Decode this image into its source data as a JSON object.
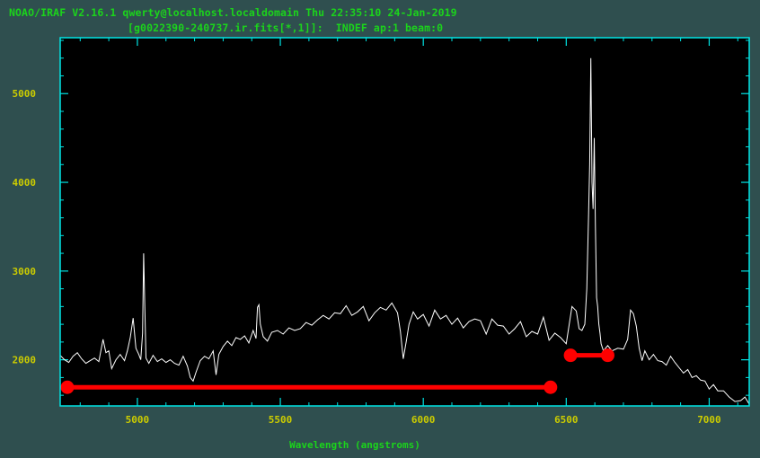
{
  "window": {
    "header_line1": "NOAO/IRAF V2.16.1 qwerty@localhost.localdomain Thu 22:35:10 24-Jan-2019",
    "header_line2": "[g0022390-240737.ir.fits[*,1]]:  INDEF ap:1 beam:0"
  },
  "colors": {
    "background": "#2f4f4f",
    "frame": "#00e5e5",
    "spectrum": "#ffffff",
    "header_text": "#1bd41b",
    "tick_labels": "#cccc00",
    "marker": "#ff0000"
  },
  "chart_data": {
    "type": "line",
    "title": "",
    "xlabel": "Wavelength (angstroms)",
    "ylabel": "",
    "xlim": [
      4730,
      7140
    ],
    "ylim": [
      1480,
      5630
    ],
    "xticks": [
      "5000",
      "5500",
      "6000",
      "6500",
      "7000"
    ],
    "yticks": [
      "2000",
      "3000",
      "4000",
      "5000"
    ],
    "grid": false,
    "series": [
      {
        "name": "",
        "x": [
          4730,
          4745,
          4760,
          4775,
          4790,
          4805,
          4820,
          4835,
          4850,
          4865,
          4880,
          4890,
          4900,
          4910,
          4925,
          4940,
          4955,
          4965,
          4975,
          4985,
          4995,
          5005,
          5012,
          5018,
          5022,
          5026,
          5030,
          5040,
          5055,
          5070,
          5085,
          5100,
          5115,
          5130,
          5145,
          5160,
          5175,
          5185,
          5195,
          5205,
          5220,
          5235,
          5250,
          5265,
          5275,
          5285,
          5300,
          5315,
          5330,
          5345,
          5360,
          5375,
          5390,
          5405,
          5415,
          5420,
          5425,
          5430,
          5440,
          5455,
          5470,
          5490,
          5510,
          5530,
          5550,
          5570,
          5590,
          5610,
          5630,
          5650,
          5670,
          5690,
          5710,
          5730,
          5750,
          5770,
          5790,
          5810,
          5830,
          5850,
          5870,
          5890,
          5910,
          5920,
          5930,
          5940,
          5950,
          5965,
          5980,
          6000,
          6020,
          6040,
          6060,
          6080,
          6100,
          6120,
          6140,
          6160,
          6180,
          6200,
          6220,
          6240,
          6260,
          6280,
          6300,
          6320,
          6340,
          6360,
          6380,
          6400,
          6420,
          6440,
          6460,
          6480,
          6500,
          6520,
          6535,
          6545,
          6555,
          6565,
          6572,
          6578,
          6582,
          6586,
          6590,
          6594,
          6598,
          6602,
          6606,
          6610,
          6614,
          6618,
          6622,
          6630,
          6645,
          6660,
          6680,
          6700,
          6715,
          6725,
          6735,
          6745,
          6755,
          6765,
          6775,
          6790,
          6805,
          6820,
          6835,
          6850,
          6865,
          6880,
          6895,
          6910,
          6925,
          6940,
          6955,
          6970,
          6985,
          7000,
          7015,
          7030,
          7050,
          7070,
          7090,
          7110,
          7125,
          7140
        ],
        "y": [
          2050,
          2000,
          1970,
          2040,
          2080,
          2010,
          1960,
          1990,
          2020,
          1980,
          2230,
          2080,
          2100,
          1900,
          2000,
          2060,
          1990,
          2100,
          2250,
          2470,
          2130,
          2060,
          2000,
          2300,
          3200,
          2600,
          2020,
          1960,
          2050,
          1980,
          2010,
          1970,
          2000,
          1960,
          1940,
          2040,
          1930,
          1800,
          1760,
          1860,
          1990,
          2040,
          2010,
          2100,
          1830,
          2060,
          2150,
          2210,
          2160,
          2250,
          2230,
          2270,
          2190,
          2330,
          2240,
          2590,
          2620,
          2400,
          2260,
          2210,
          2310,
          2330,
          2290,
          2360,
          2330,
          2350,
          2420,
          2390,
          2450,
          2500,
          2460,
          2530,
          2520,
          2610,
          2500,
          2540,
          2600,
          2440,
          2530,
          2590,
          2560,
          2640,
          2530,
          2320,
          2010,
          2200,
          2400,
          2540,
          2460,
          2510,
          2380,
          2560,
          2460,
          2500,
          2400,
          2470,
          2360,
          2430,
          2460,
          2440,
          2290,
          2460,
          2390,
          2380,
          2290,
          2350,
          2430,
          2260,
          2320,
          2290,
          2480,
          2220,
          2300,
          2250,
          2180,
          2600,
          2550,
          2350,
          2330,
          2400,
          2800,
          3600,
          4200,
          5400,
          4000,
          3700,
          4500,
          3500,
          2700,
          2600,
          2400,
          2300,
          2180,
          2100,
          2160,
          2100,
          2130,
          2120,
          2230,
          2560,
          2520,
          2380,
          2130,
          1990,
          2100,
          2000,
          2060,
          1990,
          1980,
          1940,
          2040,
          1970,
          1910,
          1850,
          1890,
          1800,
          1820,
          1770,
          1760,
          1670,
          1720,
          1650,
          1650,
          1580,
          1530,
          1540,
          1580,
          1500
        ]
      }
    ],
    "markers": [
      {
        "name": "region-1",
        "x": [
          4755,
          6445
        ],
        "y": 1690
      },
      {
        "name": "region-2",
        "x": [
          6515,
          6645
        ],
        "y": 2050
      }
    ]
  }
}
